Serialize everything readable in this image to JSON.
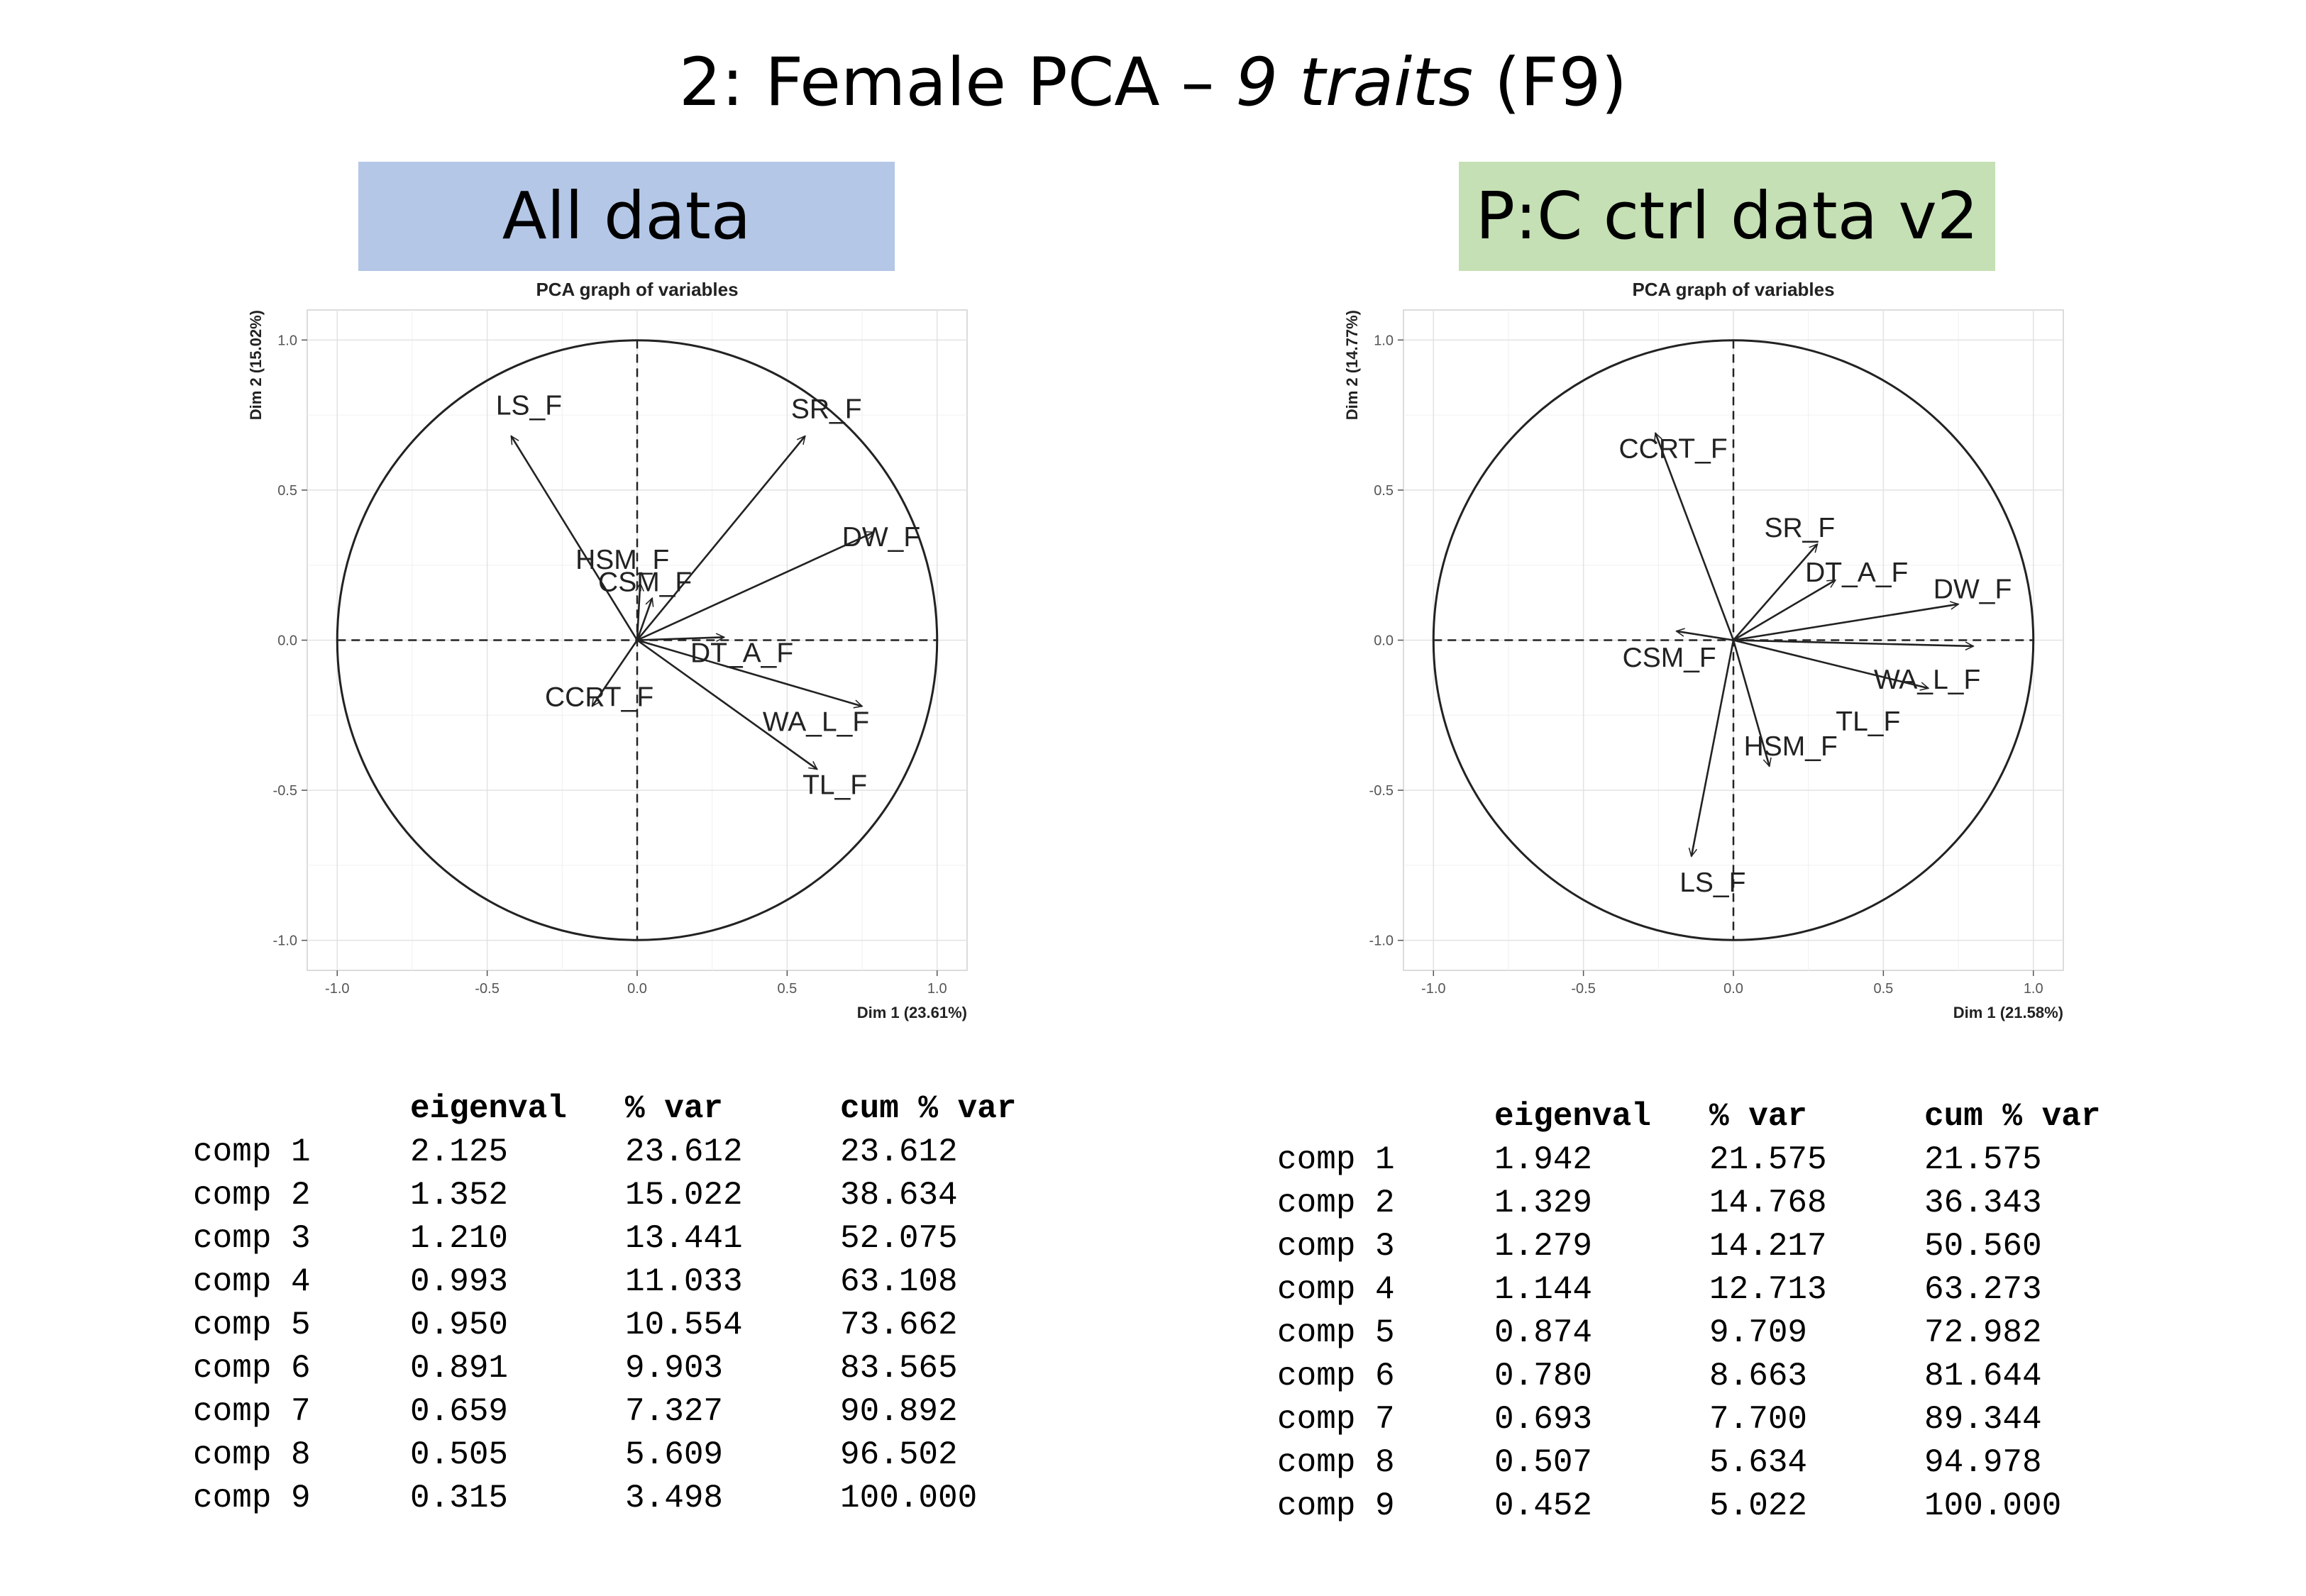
{
  "slide": {
    "title_prefix": "2: Female PCA – ",
    "title_italic": "9 traits",
    "title_suffix": " (F9)"
  },
  "panels": [
    {
      "label": "All data",
      "color": "#b4c7e7"
    },
    {
      "label": "P:C ctrl data v2",
      "color": "#c5e0b4"
    }
  ],
  "chart_data": [
    {
      "type": "scatter",
      "subtype": "pca-correlation-circle",
      "title": "PCA graph of variables",
      "xlabel": "Dim 1 (23.61%)",
      "ylabel": "Dim 2 (15.02%)",
      "xlim": [
        -1.1,
        1.1
      ],
      "ylim": [
        -1.1,
        1.1
      ],
      "xticks": [
        "-1.0",
        "-0.5",
        "0.0",
        "0.5",
        "1.0"
      ],
      "yticks": [
        "-1.0",
        "-0.5",
        "0.0",
        "0.5",
        "1.0"
      ],
      "grid": true,
      "variables": [
        {
          "name": "LS_F",
          "x": -0.42,
          "y": 0.68
        },
        {
          "name": "SR_F",
          "x": 0.56,
          "y": 0.68
        },
        {
          "name": "DW_F",
          "x": 0.79,
          "y": 0.36
        },
        {
          "name": "HSM_F",
          "x": 0.01,
          "y": 0.19
        },
        {
          "name": "CSM_F",
          "x": 0.05,
          "y": 0.14
        },
        {
          "name": "DT_A_F",
          "x": 0.29,
          "y": 0.01
        },
        {
          "name": "CCRT_F",
          "x": -0.15,
          "y": -0.22
        },
        {
          "name": "WA_L_F",
          "x": 0.75,
          "y": -0.22
        },
        {
          "name": "TL_F",
          "x": 0.6,
          "y": -0.43
        }
      ]
    },
    {
      "type": "scatter",
      "subtype": "pca-correlation-circle",
      "title": "PCA graph of variables",
      "xlabel": "Dim 1 (21.58%)",
      "ylabel": "Dim 2 (14.77%)",
      "xlim": [
        -1.1,
        1.1
      ],
      "ylim": [
        -1.1,
        1.1
      ],
      "xticks": [
        "-1.0",
        "-0.5",
        "0.0",
        "0.5",
        "1.0"
      ],
      "yticks": [
        "-1.0",
        "-0.5",
        "0.0",
        "0.5",
        "1.0"
      ],
      "grid": true,
      "variables": [
        {
          "name": "CCRT_F",
          "x": -0.26,
          "y": 0.69
        },
        {
          "name": "SR_F",
          "x": 0.28,
          "y": 0.32
        },
        {
          "name": "DT_A_F",
          "x": 0.34,
          "y": 0.2
        },
        {
          "name": "DW_F",
          "x": 0.75,
          "y": 0.12
        },
        {
          "name": "CSM_F",
          "x": -0.19,
          "y": 0.03
        },
        {
          "name": "WA_L_F",
          "x": 0.8,
          "y": -0.02
        },
        {
          "name": "TL_F",
          "x": 0.65,
          "y": -0.16
        },
        {
          "name": "HSM_F",
          "x": 0.12,
          "y": -0.42
        },
        {
          "name": "LS_F",
          "x": -0.14,
          "y": -0.72
        }
      ]
    }
  ],
  "tables": [
    {
      "headers": [
        "",
        "eigenval",
        "% var",
        "cum % var"
      ],
      "rows": [
        [
          "comp 1",
          "2.125",
          "23.612",
          "23.612"
        ],
        [
          "comp 2",
          "1.352",
          "15.022",
          "38.634"
        ],
        [
          "comp 3",
          "1.210",
          "13.441",
          "52.075"
        ],
        [
          "comp 4",
          "0.993",
          "11.033",
          "63.108"
        ],
        [
          "comp 5",
          "0.950",
          "10.554",
          "73.662"
        ],
        [
          "comp 6",
          "0.891",
          "9.903",
          "83.565"
        ],
        [
          "comp 7",
          "0.659",
          "7.327",
          "90.892"
        ],
        [
          "comp 8",
          "0.505",
          "5.609",
          "96.502"
        ],
        [
          "comp 9",
          "0.315",
          "3.498",
          "100.000"
        ]
      ]
    },
    {
      "headers": [
        "",
        "eigenval",
        "% var",
        "cum % var"
      ],
      "rows": [
        [
          "comp 1",
          "1.942",
          "21.575",
          "21.575"
        ],
        [
          "comp 2",
          "1.329",
          "14.768",
          "36.343"
        ],
        [
          "comp 3",
          "1.279",
          "14.217",
          "50.560"
        ],
        [
          "comp 4",
          "1.144",
          "12.713",
          "63.273"
        ],
        [
          "comp 5",
          "0.874",
          "9.709",
          "72.982"
        ],
        [
          "comp 6",
          "0.780",
          "8.663",
          "81.644"
        ],
        [
          "comp 7",
          "0.693",
          "7.700",
          "89.344"
        ],
        [
          "comp 8",
          "0.507",
          "5.634",
          "94.978"
        ],
        [
          "comp 9",
          "0.452",
          "5.022",
          "100.000"
        ]
      ]
    }
  ]
}
